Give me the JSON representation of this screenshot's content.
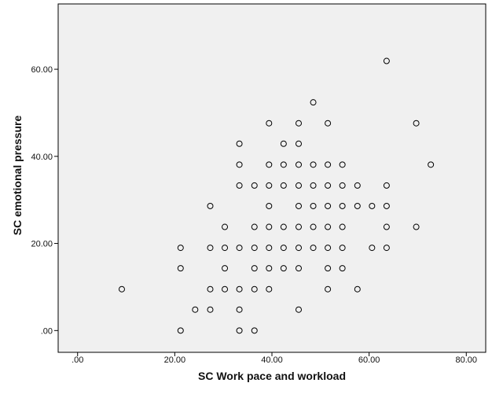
{
  "chart_data": {
    "type": "scatter",
    "title": "",
    "xlabel": "SC Work pace and workload",
    "ylabel": "SC emotional pressure",
    "xlim": [
      -4,
      84
    ],
    "ylim": [
      -5,
      75
    ],
    "xticks": [
      0,
      20,
      40,
      60,
      80
    ],
    "xtick_labels": [
      ".00",
      "20.00",
      "40.00",
      "60.00",
      "80.00"
    ],
    "yticks": [
      0,
      20,
      40,
      60
    ],
    "ytick_labels": [
      ".00",
      "20.00",
      "40.00",
      "60.00"
    ],
    "grid": false,
    "legend": "none",
    "plot_background": "#f0f0f0",
    "marker": "open-circle",
    "marker_color": "#000000",
    "points": [
      [
        9.1,
        9.5
      ],
      [
        21.2,
        0
      ],
      [
        21.2,
        14.3
      ],
      [
        21.2,
        19
      ],
      [
        24.2,
        4.8
      ],
      [
        27.3,
        4.8
      ],
      [
        27.3,
        9.5
      ],
      [
        27.3,
        19
      ],
      [
        27.3,
        28.6
      ],
      [
        30.3,
        9.5
      ],
      [
        30.3,
        14.3
      ],
      [
        30.3,
        19
      ],
      [
        30.3,
        23.8
      ],
      [
        33.3,
        0
      ],
      [
        33.3,
        4.8
      ],
      [
        33.3,
        9.5
      ],
      [
        33.3,
        19
      ],
      [
        33.3,
        33.3
      ],
      [
        33.3,
        38.1
      ],
      [
        33.3,
        42.9
      ],
      [
        36.4,
        0
      ],
      [
        36.4,
        9.5
      ],
      [
        36.4,
        14.3
      ],
      [
        36.4,
        19
      ],
      [
        36.4,
        23.8
      ],
      [
        36.4,
        33.3
      ],
      [
        39.4,
        9.5
      ],
      [
        39.4,
        14.3
      ],
      [
        39.4,
        19
      ],
      [
        39.4,
        23.8
      ],
      [
        39.4,
        28.6
      ],
      [
        39.4,
        33.3
      ],
      [
        39.4,
        38.1
      ],
      [
        39.4,
        47.6
      ],
      [
        42.4,
        14.3
      ],
      [
        42.4,
        19
      ],
      [
        42.4,
        23.8
      ],
      [
        42.4,
        33.3
      ],
      [
        42.4,
        38.1
      ],
      [
        42.4,
        42.9
      ],
      [
        45.5,
        4.8
      ],
      [
        45.5,
        14.3
      ],
      [
        45.5,
        19
      ],
      [
        45.5,
        23.8
      ],
      [
        45.5,
        28.6
      ],
      [
        45.5,
        33.3
      ],
      [
        45.5,
        38.1
      ],
      [
        45.5,
        42.9
      ],
      [
        45.5,
        47.6
      ],
      [
        48.5,
        19
      ],
      [
        48.5,
        23.8
      ],
      [
        48.5,
        28.6
      ],
      [
        48.5,
        33.3
      ],
      [
        48.5,
        38.1
      ],
      [
        48.5,
        52.4
      ],
      [
        51.5,
        9.5
      ],
      [
        51.5,
        14.3
      ],
      [
        51.5,
        19
      ],
      [
        51.5,
        23.8
      ],
      [
        51.5,
        28.6
      ],
      [
        51.5,
        33.3
      ],
      [
        51.5,
        38.1
      ],
      [
        51.5,
        47.6
      ],
      [
        54.5,
        14.3
      ],
      [
        54.5,
        19
      ],
      [
        54.5,
        23.8
      ],
      [
        54.5,
        28.6
      ],
      [
        54.5,
        33.3
      ],
      [
        54.5,
        38.1
      ],
      [
        57.6,
        9.5
      ],
      [
        57.6,
        28.6
      ],
      [
        57.6,
        33.3
      ],
      [
        60.6,
        19
      ],
      [
        60.6,
        28.6
      ],
      [
        63.6,
        19
      ],
      [
        63.6,
        23.8
      ],
      [
        63.6,
        28.6
      ],
      [
        63.6,
        33.3
      ],
      [
        63.6,
        61.9
      ],
      [
        69.7,
        23.8
      ],
      [
        69.7,
        47.6
      ],
      [
        72.7,
        38.1
      ]
    ]
  }
}
